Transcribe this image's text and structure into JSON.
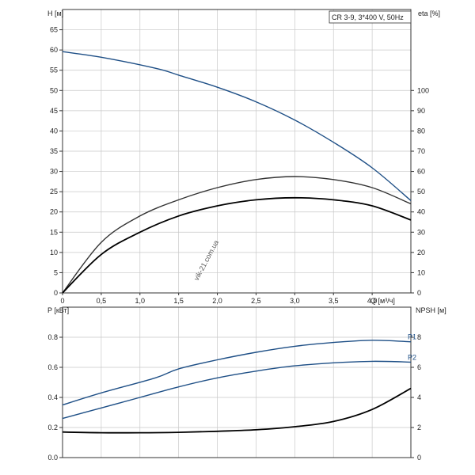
{
  "chart_data": [
    {
      "type": "line",
      "title": "CR 3-9, 3*400 V, 50Hz",
      "xlabel": "Q [м³/ч]",
      "ylabel": "H [м]",
      "y2label": "eta [%]",
      "xlim": [
        0,
        4.5
      ],
      "ylim": [
        0,
        70
      ],
      "y2lim": [
        0,
        140
      ],
      "xticks": [
        "0",
        "0,5",
        "1,0",
        "1,5",
        "2,0",
        "2,5",
        "3,0",
        "3,5",
        "4,0"
      ],
      "yticks": [
        "0",
        "5",
        "10",
        "15",
        "20",
        "25",
        "30",
        "35",
        "40",
        "45",
        "50",
        "55",
        "60",
        "65"
      ],
      "y2ticks": [
        "0",
        "10",
        "20",
        "30",
        "40",
        "50",
        "60",
        "70",
        "80",
        "90",
        "100"
      ],
      "grid": true,
      "series": [
        {
          "name": "H",
          "axis": "left",
          "color": "#1e4f86",
          "x": [
            0,
            0.5,
            1.2,
            1.5,
            2.0,
            2.5,
            3.0,
            3.5,
            4.0,
            4.5
          ],
          "y": [
            59.6,
            58.2,
            55.5,
            53.8,
            50.8,
            47.2,
            42.7,
            37.2,
            30.9,
            22.8
          ]
        },
        {
          "name": "",
          "axis": "right",
          "color": "#333333",
          "x": [
            0,
            0.5,
            1.0,
            1.5,
            2.0,
            2.5,
            3.0,
            3.5,
            4.0,
            4.5
          ],
          "y": [
            0,
            25,
            38,
            46,
            52,
            56,
            57.5,
            56,
            52,
            44
          ]
        },
        {
          "name": "",
          "axis": "right",
          "color": "#000000",
          "x": [
            0,
            0.5,
            1.0,
            1.5,
            2.0,
            2.5,
            3.0,
            3.5,
            4.0,
            4.5
          ],
          "y": [
            0,
            19,
            30,
            38,
            43,
            46,
            47,
            46,
            43,
            36
          ]
        }
      ]
    },
    {
      "type": "line",
      "xlabel": "",
      "ylabel": "P [кВт]",
      "y2label": "NPSH [м]",
      "xlim": [
        0,
        4.5
      ],
      "ylim": [
        0,
        1.0
      ],
      "y2lim": [
        0,
        10
      ],
      "yticks": [
        "0.0",
        "0.2",
        "0.4",
        "0.6",
        "0.8"
      ],
      "y2ticks": [
        "0",
        "2",
        "4",
        "6",
        "8"
      ],
      "grid": true,
      "series": [
        {
          "name": "P1",
          "axis": "left",
          "color": "#1e4f86",
          "x": [
            0,
            0.5,
            1.2,
            1.5,
            2.0,
            2.5,
            3.0,
            3.5,
            4.0,
            4.5
          ],
          "y": [
            0.35,
            0.43,
            0.53,
            0.59,
            0.65,
            0.7,
            0.74,
            0.765,
            0.78,
            0.77
          ]
        },
        {
          "name": "P2",
          "axis": "left",
          "color": "#1e4f86",
          "x": [
            0,
            0.5,
            1.0,
            1.5,
            2.0,
            2.5,
            3.0,
            3.5,
            4.0,
            4.5
          ],
          "y": [
            0.26,
            0.33,
            0.4,
            0.47,
            0.53,
            0.575,
            0.61,
            0.63,
            0.64,
            0.635
          ]
        },
        {
          "name": "",
          "axis": "right",
          "color": "#000000",
          "x": [
            0,
            0.5,
            1.0,
            1.5,
            2.0,
            2.5,
            3.0,
            3.5,
            4.0,
            4.5
          ],
          "y": [
            1.7,
            1.65,
            1.65,
            1.68,
            1.75,
            1.85,
            2.05,
            2.4,
            3.2,
            4.6
          ]
        }
      ]
    }
  ],
  "watermark": "vik-21.com.ua"
}
